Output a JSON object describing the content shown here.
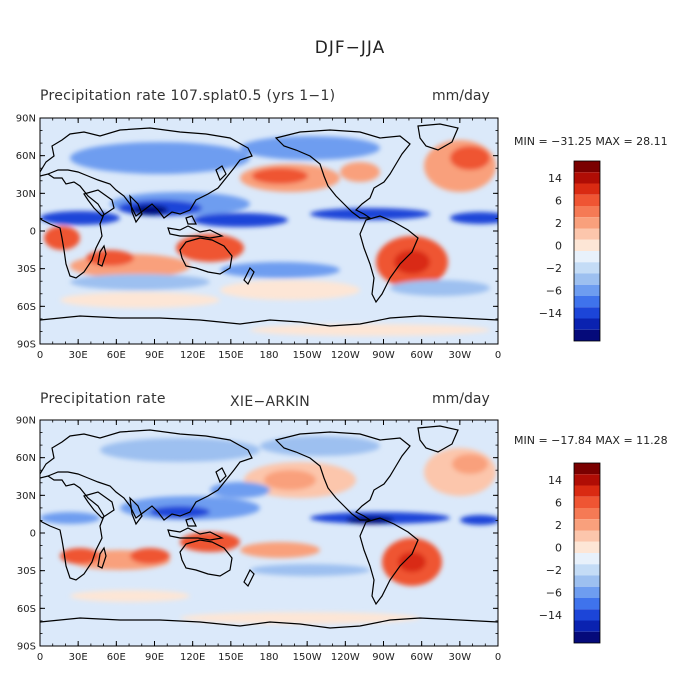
{
  "title": "DJF−JJA",
  "panels": [
    {
      "title": "Precipitation rate 107.splat0.5 (yrs 1−1)",
      "subtitle": "",
      "units": "mm/day",
      "min_label": "MIN = −31.25",
      "max_label": "MAX =  28.11"
    },
    {
      "title": "Precipitation rate",
      "subtitle": "XIE−ARKIN",
      "units": "mm/day",
      "min_label": "MIN = −17.84",
      "max_label": "MAX =  11.28"
    }
  ],
  "axes": {
    "lat_labels": [
      "90N",
      "60N",
      "30N",
      "0",
      "30S",
      "60S",
      "90S"
    ],
    "lon_labels": [
      "0",
      "30E",
      "60E",
      "90E",
      "120E",
      "150E",
      "180",
      "150W",
      "120W",
      "90W",
      "60W",
      "30W",
      "0"
    ]
  },
  "colorbar": {
    "labels": [
      "14",
      "6",
      "2",
      "0",
      "−2",
      "−6",
      "−14"
    ],
    "colors": [
      "#7a0000",
      "#b00d05",
      "#d92a12",
      "#ef5533",
      "#f57a55",
      "#f9a07c",
      "#fcc6ac",
      "#fde6d6",
      "#e8f1fb",
      "#c4dcf6",
      "#9dc0f0",
      "#6e9df0",
      "#3f73ec",
      "#1c45d8",
      "#0a22b0",
      "#050a7a"
    ]
  },
  "map_colors": {
    "ocean": "#dbe9fa",
    "coast": "#000000",
    "dry_strong": "#ef5533",
    "dry_mid": "#f9a07c",
    "dry_light": "#fde6d6",
    "wet_light": "#c4dcf6",
    "wet_mid": "#6e9df0",
    "wet_strong": "#1c45d8",
    "wet_extreme": "#050a7a"
  }
}
